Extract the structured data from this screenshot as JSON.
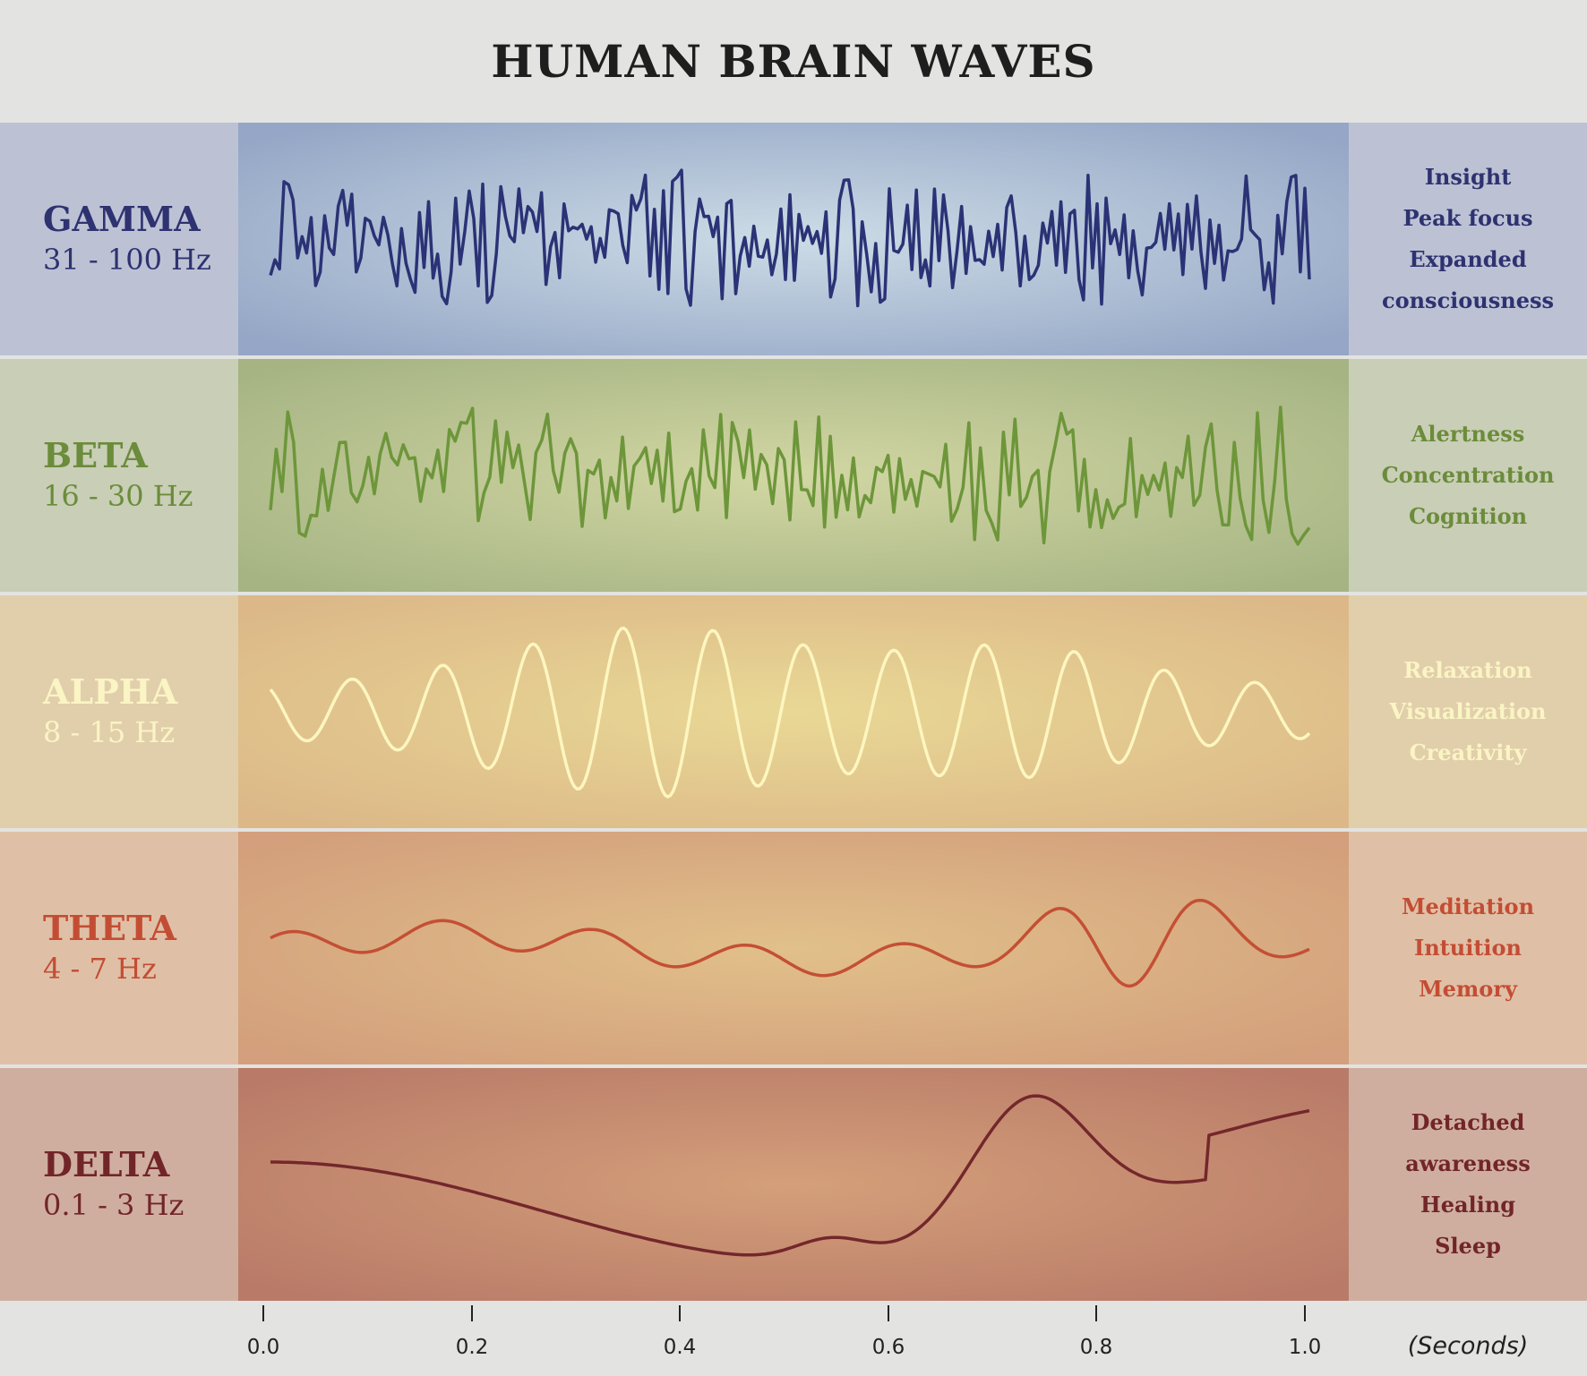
{
  "title": "HUMAN BRAIN WAVES",
  "bands": [
    {
      "name": "GAMMA",
      "range": "31 - 100 Hz",
      "effects": [
        "Insight",
        "Peak focus",
        "Expanded",
        "consciousness"
      ],
      "text_color": "#2e3270",
      "wave_color": "#2b3275",
      "side_bg": "#bcc2d4",
      "grad_center": "#ccdce6",
      "grad_edge": "#95a6c6",
      "seed": 11,
      "pattern": "noise"
    },
    {
      "name": "BETA",
      "range": "16 - 30 Hz",
      "effects": [
        "Alertness",
        "Concentration",
        "Cognition"
      ],
      "text_color": "#6b8c3a",
      "wave_color": "#6d963a",
      "side_bg": "#c9ceb6",
      "grad_center": "#d2d7a3",
      "grad_edge": "#a6b484",
      "seed": 27,
      "pattern": "noise"
    },
    {
      "name": "ALPHA",
      "range": "8 - 15 Hz",
      "effects": [
        "Relaxation",
        "Visualization",
        "Creativity"
      ],
      "text_color": "#fbf4c4",
      "wave_color": "#fdf6c0",
      "side_bg": "#e1cfac",
      "grad_center": "#e9d895",
      "grad_edge": "#dcb888",
      "seed": 0,
      "pattern": "alpha"
    },
    {
      "name": "THETA",
      "range": "4 - 7 Hz",
      "effects": [
        "Meditation",
        "Intuition",
        "Memory"
      ],
      "text_color": "#c34d34",
      "wave_color": "#c44f34",
      "side_bg": "#dfc0a6",
      "grad_center": "#e1c08a",
      "grad_edge": "#d39f7c",
      "seed": 0,
      "pattern": "theta"
    },
    {
      "name": "DELTA",
      "range": "0.1 - 3 Hz",
      "effects": [
        "Detached",
        "awareness",
        "Healing",
        "Sleep"
      ],
      "text_color": "#722528",
      "wave_color": "#73272b",
      "side_bg": "#cfaea0",
      "grad_center": "#d49f7a",
      "grad_edge": "#b97b68",
      "seed": 0,
      "pattern": "delta"
    }
  ],
  "axis": {
    "ticks": [
      "0.0",
      "0.2",
      "0.4",
      "0.6",
      "0.8",
      "1.0"
    ],
    "unit": "(Seconds)"
  }
}
